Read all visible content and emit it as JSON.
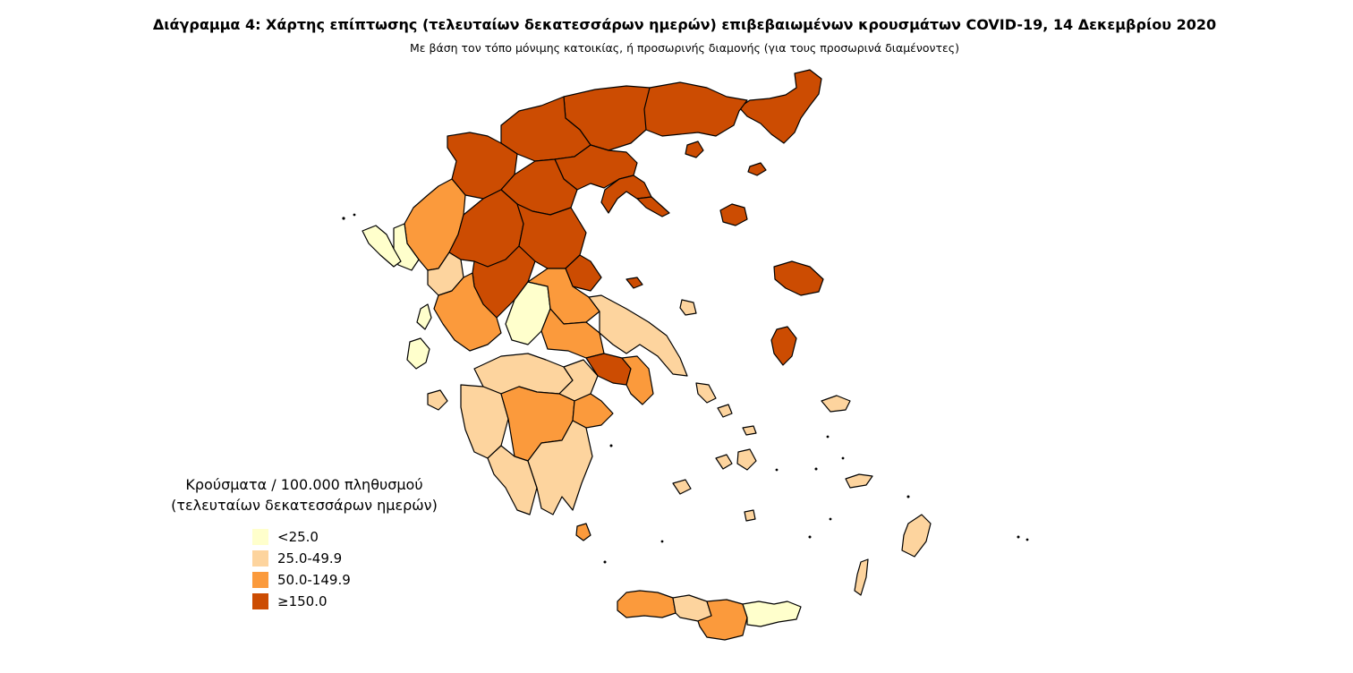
{
  "title": "Διάγραμμα 4: Χάρτης επίπτωσης (τελευταίων δεκατεσσάρων ημερών) επιβεβαιωμένων κρουσμάτων COVID-19, 14 Δεκεμβρίου 2020",
  "subtitle": "Με βάση τον τόπο μόνιμης κατοικίας, ή προσωρινής διαμονής (για τους προσωρινά διαμένοντες)",
  "legend": {
    "title_line1": "Κρούσματα / 100.000 πληθυσμού",
    "title_line2": "(τελευταίων δεκατεσσάρων ημερών)",
    "items": [
      {
        "label": "<25.0",
        "color": "#FFFFCC"
      },
      {
        "label": "25.0-49.9",
        "color": "#FDD49E"
      },
      {
        "label": "50.0-149.9",
        "color": "#FB9A3C"
      },
      {
        "label": "≥150.0",
        "color": "#CC4C02"
      }
    ]
  },
  "map": {
    "class_colors": [
      "#FFFFCC",
      "#FDD49E",
      "#FB9A3C",
      "#CC4C02"
    ],
    "outline_color": "#000000"
  }
}
